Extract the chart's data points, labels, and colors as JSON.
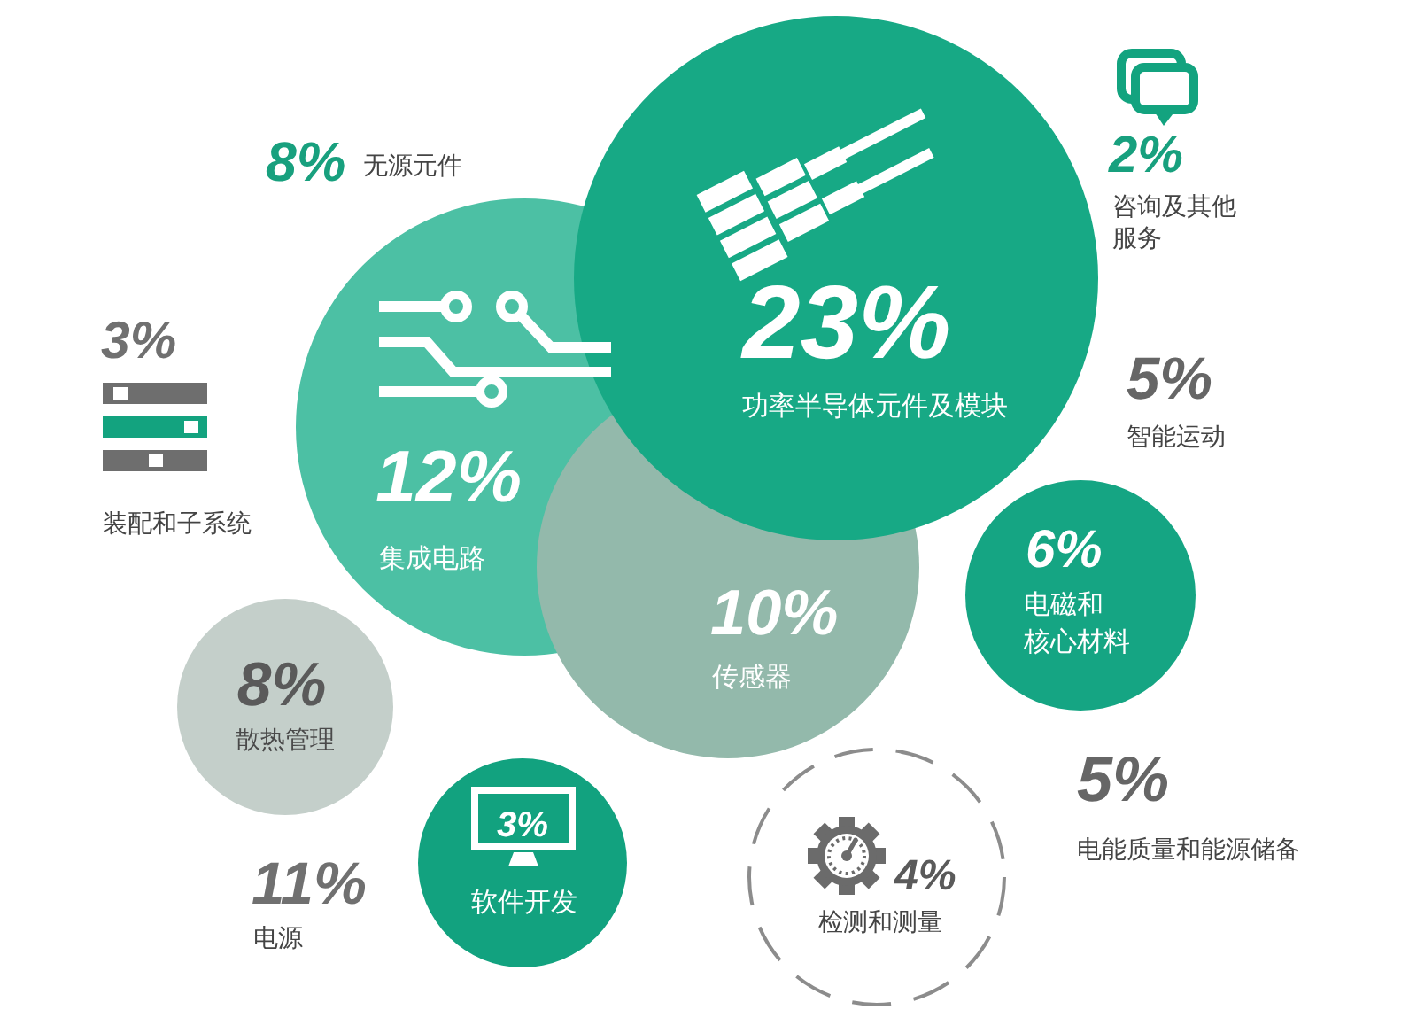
{
  "chart_data": {
    "type": "other",
    "categories": [
      "无源元件",
      "装配和子系统",
      "集成电路",
      "功率半导体元件及模块",
      "咨询及其他服务",
      "智能运动",
      "电磁和核心材料",
      "传感器",
      "散热管理",
      "软件开发",
      "检测和测量",
      "电能质量和能源储备",
      "电源"
    ],
    "values": [
      8,
      3,
      12,
      23,
      2,
      5,
      6,
      10,
      8,
      3,
      4,
      5,
      11
    ],
    "value_labels": [
      "8%",
      "3%",
      "12%",
      "23%",
      "2%",
      "5%",
      "6%",
      "10%",
      "8%",
      "3%",
      "4%",
      "5%",
      "11%"
    ],
    "colors": [
      null,
      null,
      "#4cc0a4",
      "#17a985",
      null,
      null,
      "#15a583",
      "#93b9ab",
      "#c4cfca",
      "#12a27f",
      "#8c8c8c",
      null,
      null
    ]
  }
}
